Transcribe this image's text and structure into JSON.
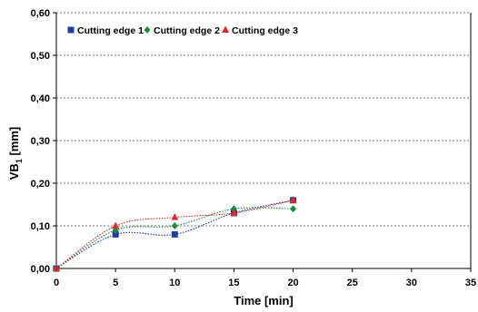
{
  "chart_data": {
    "type": "scatter",
    "xlabel": "Time [min]",
    "ylabel": "VB",
    "ylabel_sub": "1",
    "ylabel_unit": " [mm]",
    "xlim": [
      0,
      35
    ],
    "ylim": [
      0,
      0.6
    ],
    "x_ticks": [
      "0",
      "5",
      "10",
      "15",
      "20",
      "25",
      "30",
      "35"
    ],
    "y_ticks": [
      "0,00",
      "0,10",
      "0,20",
      "0,30",
      "0,40",
      "0,50",
      "0,60"
    ],
    "grid": "horizontal dashed",
    "legend_position": "top-left",
    "smoothed_trendlines": true,
    "series": [
      {
        "name": "Cutting edge 1",
        "marker": "square",
        "color": "#1f3c9c",
        "x": [
          0,
          5,
          10,
          15,
          20
        ],
        "y": [
          0.0,
          0.08,
          0.08,
          0.13,
          0.16
        ]
      },
      {
        "name": "Cutting edge 2",
        "marker": "diamond",
        "color": "#1e8a3c",
        "x": [
          0,
          5,
          10,
          15,
          20
        ],
        "y": [
          0.0,
          0.09,
          0.1,
          0.14,
          0.14
        ]
      },
      {
        "name": "Cutting edge 3",
        "marker": "triangle",
        "color": "#e02828",
        "x": [
          0,
          5,
          10,
          15,
          20
        ],
        "y": [
          0.0,
          0.1,
          0.12,
          0.13,
          0.16
        ]
      }
    ]
  }
}
